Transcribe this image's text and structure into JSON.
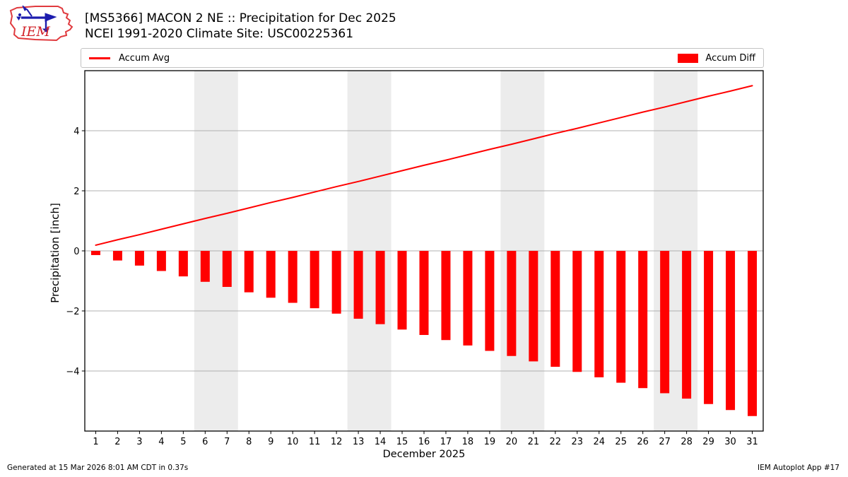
{
  "header": {
    "logo_text": "IEM",
    "title_line1": "[MS5366] MACON 2 NE :: Precipitation for Dec 2025",
    "title_line2": "NCEI 1991-2020 Climate Site: USC00225361"
  },
  "legend": {
    "items": [
      {
        "label": "Accum Avg",
        "swatch": "line",
        "color": "#ff0000"
      },
      {
        "label": "Accum Diff",
        "swatch": "bar",
        "color": "#ff0000"
      }
    ]
  },
  "footer": {
    "left": "Generated at 15 Mar 2026 8:01 AM CDT in 0.37s",
    "right": "IEM Autoplot App #17"
  },
  "chart_data": {
    "type": "bar",
    "title": "[MS5366] MACON 2 NE :: Precipitation for Dec 2025",
    "subtitle": "NCEI 1991-2020 Climate Site: USC00225361",
    "xlabel": "December 2025",
    "ylabel": "Precipitation [inch]",
    "x": [
      1,
      2,
      3,
      4,
      5,
      6,
      7,
      8,
      9,
      10,
      11,
      12,
      13,
      14,
      15,
      16,
      17,
      18,
      19,
      20,
      21,
      22,
      23,
      24,
      25,
      26,
      27,
      28,
      29,
      30,
      31
    ],
    "series": [
      {
        "name": "Accum Avg",
        "type": "line",
        "color": "#ff0000",
        "values": [
          0.19,
          0.37,
          0.54,
          0.72,
          0.9,
          1.08,
          1.25,
          1.43,
          1.61,
          1.78,
          1.96,
          2.14,
          2.31,
          2.49,
          2.67,
          2.85,
          3.02,
          3.2,
          3.38,
          3.55,
          3.73,
          3.91,
          4.08,
          4.26,
          4.44,
          4.62,
          4.79,
          4.97,
          5.15,
          5.32,
          5.5
        ]
      },
      {
        "name": "Accum Diff",
        "type": "bar",
        "color": "#ff0000",
        "values": [
          -0.14,
          -0.32,
          -0.49,
          -0.67,
          -0.85,
          -1.03,
          -1.2,
          -1.38,
          -1.56,
          -1.73,
          -1.91,
          -2.09,
          -2.26,
          -2.44,
          -2.62,
          -2.8,
          -2.97,
          -3.15,
          -3.33,
          -3.5,
          -3.68,
          -3.86,
          -4.03,
          -4.21,
          -4.39,
          -4.57,
          -4.74,
          -4.92,
          -5.1,
          -5.3,
          -5.5
        ]
      }
    ],
    "xlim": [
      0.5,
      31.5
    ],
    "ylim": [
      -6,
      6
    ],
    "xticks": [
      1,
      2,
      3,
      4,
      5,
      6,
      7,
      8,
      9,
      10,
      11,
      12,
      13,
      14,
      15,
      16,
      17,
      18,
      19,
      20,
      21,
      22,
      23,
      24,
      25,
      26,
      27,
      28,
      29,
      30,
      31
    ],
    "yticks": [
      -4,
      -2,
      0,
      2,
      4
    ],
    "grid": true,
    "grid_color": "#b0b0b0",
    "weekend_bands": [
      [
        5.5,
        7.5
      ],
      [
        12.5,
        14.5
      ],
      [
        19.5,
        21.5
      ],
      [
        26.5,
        28.5
      ]
    ],
    "band_color": "#ececec",
    "legend_position": "top expanded, two columns"
  }
}
